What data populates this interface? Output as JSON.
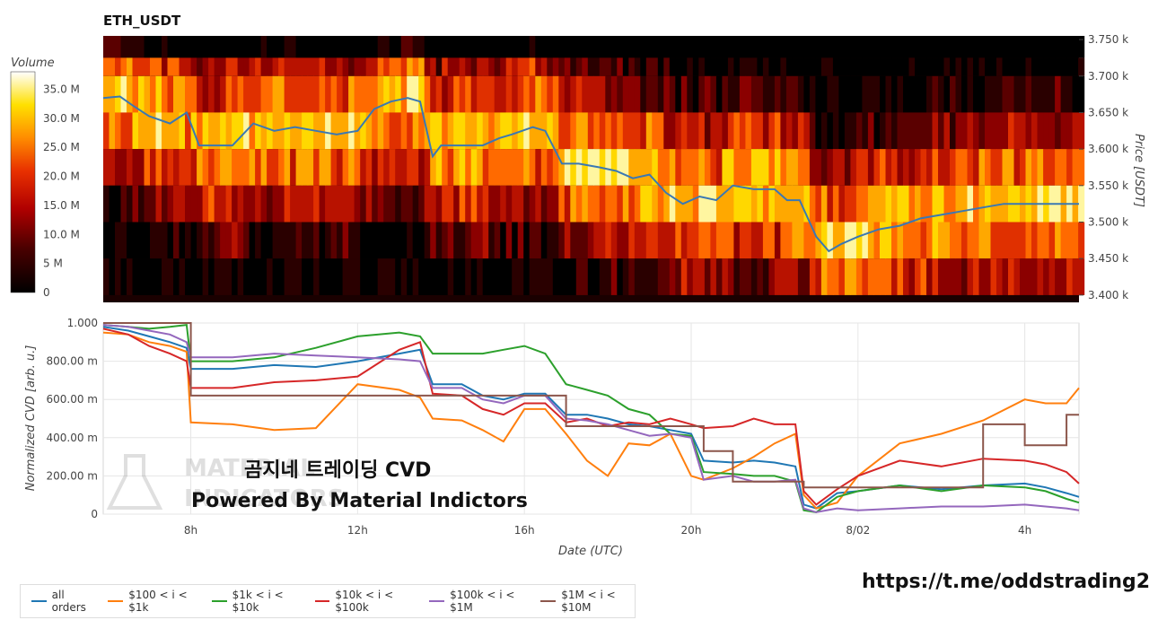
{
  "title": "ETH_USDT",
  "watermark": {
    "line1": "곰지네 트레이딩 CVD",
    "line2": "Powered By Material Indictors",
    "logo_text": [
      "MATERIAL",
      "INDICATORS"
    ]
  },
  "url": "https://t.me/oddstrading2",
  "colors": {
    "all": "#1f77b4",
    "s100": "#ff7f0e",
    "s1k": "#2ca02c",
    "s10k": "#d62728",
    "s100k": "#9467bd",
    "s1m": "#8c564b",
    "price": "#3a78b4"
  },
  "chart_data": [
    {
      "type": "heatmap",
      "title": "ETH_USDT",
      "colorbar_label": "Volume",
      "colorbar_ticks": [
        "0",
        "5 M",
        "10.0 M",
        "15.0 M",
        "20.0 M",
        "25.0 M",
        "30.0 M",
        "35.0 M"
      ],
      "ylabel": "Price [USDT]",
      "ylim": [
        3390,
        3755
      ],
      "yticks": [
        3400,
        3450,
        3500,
        3550,
        3600,
        3650,
        3700,
        3750
      ],
      "ytick_labels": [
        "3.400 k",
        "3.450 k",
        "3.500 k",
        "3.550 k",
        "3.600 k",
        "3.650 k",
        "3.700 k",
        "3.750 k"
      ],
      "price_bands": [
        3725,
        3700,
        3650,
        3600,
        3550,
        3500,
        3450,
        3400
      ],
      "time_range_hours": [
        5.9,
        29.3
      ],
      "price_line": {
        "x": [
          5.9,
          6.3,
          6.6,
          7.0,
          7.5,
          7.9,
          8.2,
          8.6,
          9.0,
          9.5,
          10.0,
          10.5,
          11.0,
          11.5,
          12.0,
          12.4,
          12.8,
          13.2,
          13.5,
          13.8,
          14.0,
          14.5,
          15.0,
          15.4,
          15.7,
          16.2,
          16.5,
          16.9,
          17.3,
          17.8,
          18.2,
          18.6,
          19.0,
          19.4,
          19.8,
          20.2,
          20.6,
          21.0,
          21.5,
          22.0,
          22.3,
          22.6,
          23.0,
          23.3,
          23.6,
          24.0,
          24.5,
          25.0,
          25.5,
          26.0,
          26.5,
          27.0,
          27.5,
          28.0,
          28.5,
          29.0,
          29.3
        ],
        "y": [
          3670,
          3672,
          3660,
          3645,
          3635,
          3650,
          3605,
          3605,
          3605,
          3635,
          3625,
          3630,
          3625,
          3620,
          3625,
          3655,
          3665,
          3670,
          3665,
          3590,
          3605,
          3605,
          3605,
          3615,
          3620,
          3630,
          3625,
          3580,
          3580,
          3575,
          3570,
          3560,
          3565,
          3540,
          3525,
          3535,
          3530,
          3550,
          3545,
          3545,
          3530,
          3530,
          3480,
          3460,
          3470,
          3480,
          3490,
          3495,
          3505,
          3510,
          3515,
          3520,
          3525,
          3525,
          3525,
          3525,
          3525
        ]
      }
    },
    {
      "type": "line",
      "xlabel": "Date (UTC)",
      "ylabel": "Normalized CVD [arb. u.]",
      "ylim": [
        0,
        1.0
      ],
      "xlim": [
        5.9,
        29.3
      ],
      "xticks": [
        8,
        12,
        16,
        20,
        24,
        28
      ],
      "xtick_labels": [
        "8h",
        "12h",
        "16h",
        "20h",
        "8/02",
        "4h"
      ],
      "yticks": [
        0,
        0.2,
        0.4,
        0.6,
        0.8,
        1.0
      ],
      "ytick_labels": [
        "0",
        "200.00 m",
        "400.00 m",
        "600.00 m",
        "800.00 m",
        "1.000"
      ],
      "x": [
        5.9,
        6.5,
        7.0,
        7.5,
        7.9,
        8.0,
        9.0,
        10.0,
        11.0,
        12.0,
        13.0,
        13.5,
        13.8,
        14.5,
        15.0,
        15.5,
        16.0,
        16.5,
        17.0,
        17.5,
        18.0,
        18.5,
        19.0,
        19.5,
        20.0,
        20.3,
        21.0,
        21.5,
        22.0,
        22.5,
        22.7,
        23.0,
        23.5,
        24.0,
        25.0,
        26.0,
        27.0,
        28.0,
        28.5,
        29.0,
        29.3
      ],
      "series": [
        {
          "name": "all orders",
          "values": [
            0.98,
            0.96,
            0.93,
            0.9,
            0.87,
            0.76,
            0.76,
            0.78,
            0.77,
            0.8,
            0.84,
            0.86,
            0.68,
            0.68,
            0.62,
            0.6,
            0.63,
            0.63,
            0.52,
            0.52,
            0.5,
            0.47,
            0.46,
            0.44,
            0.42,
            0.28,
            0.27,
            0.28,
            0.27,
            0.25,
            0.05,
            0.03,
            0.11,
            0.12,
            0.15,
            0.13,
            0.15,
            0.16,
            0.14,
            0.11,
            0.09
          ]
        },
        {
          "name": "$100 < i < $1k",
          "values": [
            0.95,
            0.94,
            0.9,
            0.88,
            0.85,
            0.48,
            0.47,
            0.44,
            0.45,
            0.68,
            0.65,
            0.61,
            0.5,
            0.49,
            0.44,
            0.38,
            0.55,
            0.55,
            0.42,
            0.28,
            0.2,
            0.37,
            0.36,
            0.42,
            0.2,
            0.18,
            0.24,
            0.3,
            0.37,
            0.42,
            0.1,
            0.03,
            0.06,
            0.2,
            0.37,
            0.42,
            0.49,
            0.6,
            0.58,
            0.58,
            0.66
          ]
        },
        {
          "name": "$1k < i < $10k",
          "values": [
            0.99,
            0.98,
            0.97,
            0.98,
            0.99,
            0.8,
            0.8,
            0.82,
            0.87,
            0.93,
            0.95,
            0.93,
            0.84,
            0.84,
            0.84,
            0.86,
            0.88,
            0.84,
            0.68,
            0.65,
            0.62,
            0.55,
            0.52,
            0.42,
            0.41,
            0.22,
            0.21,
            0.2,
            0.2,
            0.17,
            0.02,
            0.01,
            0.09,
            0.12,
            0.15,
            0.12,
            0.15,
            0.14,
            0.12,
            0.08,
            0.06
          ]
        },
        {
          "name": "$10k < i < $100k",
          "values": [
            0.97,
            0.94,
            0.88,
            0.84,
            0.8,
            0.66,
            0.66,
            0.69,
            0.7,
            0.72,
            0.86,
            0.9,
            0.63,
            0.62,
            0.55,
            0.52,
            0.58,
            0.58,
            0.48,
            0.5,
            0.46,
            0.48,
            0.47,
            0.5,
            0.47,
            0.45,
            0.46,
            0.5,
            0.47,
            0.47,
            0.12,
            0.05,
            0.13,
            0.2,
            0.28,
            0.25,
            0.29,
            0.28,
            0.26,
            0.22,
            0.16
          ]
        },
        {
          "name": "$100k < i < $1M",
          "values": [
            0.99,
            0.98,
            0.96,
            0.94,
            0.9,
            0.82,
            0.82,
            0.84,
            0.83,
            0.82,
            0.81,
            0.8,
            0.66,
            0.66,
            0.6,
            0.58,
            0.62,
            0.62,
            0.5,
            0.49,
            0.47,
            0.44,
            0.41,
            0.42,
            0.4,
            0.18,
            0.2,
            0.17,
            0.17,
            0.18,
            0.03,
            0.01,
            0.03,
            0.02,
            0.03,
            0.04,
            0.04,
            0.05,
            0.04,
            0.03,
            0.02
          ]
        },
        {
          "name": "$1M < i < $10M",
          "values": [
            1.0,
            1.0,
            1.0,
            1.0,
            1.0,
            0.62,
            0.62,
            0.62,
            0.62,
            0.62,
            0.62,
            0.62,
            0.62,
            0.62,
            0.62,
            0.62,
            0.62,
            0.62,
            0.46,
            0.46,
            0.46,
            0.46,
            0.46,
            0.46,
            0.46,
            0.33,
            0.17,
            0.17,
            0.17,
            0.17,
            0.14,
            0.14,
            0.14,
            0.14,
            0.14,
            0.14,
            0.47,
            0.36,
            0.36,
            0.52,
            0.52
          ]
        }
      ],
      "legend": "bottom-left",
      "grid": true
    }
  ]
}
